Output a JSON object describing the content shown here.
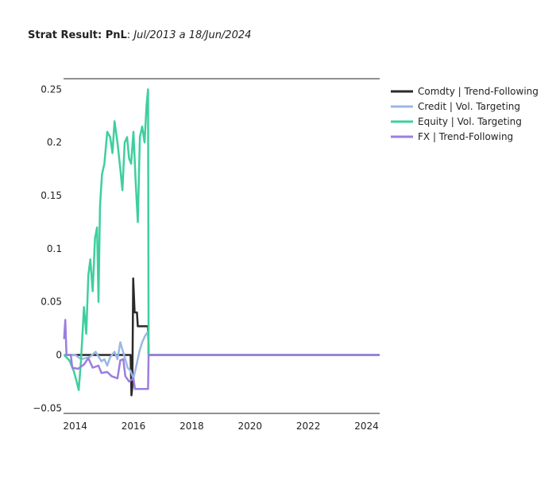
{
  "title": {
    "bold": "Strat Result: PnL",
    "sep": ": ",
    "italic": "Jul/2013 a 18/Jun/2024"
  },
  "chart_data": {
    "type": "line",
    "title": "Strat Result: PnL: Jul/2013 a 18/Jun/2024",
    "xlabel": "",
    "ylabel": "",
    "xlim": [
      2013.6,
      2024.45
    ],
    "ylim": [
      -0.055,
      0.26
    ],
    "x_ticks": [
      2014,
      2016,
      2018,
      2020,
      2022,
      2024
    ],
    "x_tick_labels": [
      "2014",
      "2016",
      "2018",
      "2020",
      "2022",
      "2024"
    ],
    "y_ticks": [
      -0.05,
      0,
      0.05,
      0.1,
      0.15,
      0.2,
      0.25
    ],
    "y_tick_labels": [
      "−0.05",
      "0",
      "0.05",
      "0.1",
      "0.15",
      "0.2",
      "0.25"
    ],
    "grid": false,
    "legend_position": "right",
    "series": [
      {
        "name": "Comdty | Trend-Following",
        "color": "#2a2a2a",
        "points": [
          [
            2013.62,
            0.0
          ],
          [
            2015.45,
            0.0
          ],
          [
            2015.9,
            0.0
          ],
          [
            2015.93,
            -0.038
          ],
          [
            2015.96,
            -0.03
          ],
          [
            2015.99,
            0.072
          ],
          [
            2016.04,
            0.04
          ],
          [
            2016.12,
            0.04
          ],
          [
            2016.15,
            0.027
          ],
          [
            2016.5,
            0.027
          ],
          [
            2016.52,
            0.0
          ],
          [
            2024.45,
            0.0
          ]
        ]
      },
      {
        "name": "Credit | Vol. Targeting",
        "color": "#9ab8e6",
        "points": [
          [
            2013.62,
            0.0
          ],
          [
            2014.0,
            0.0
          ],
          [
            2014.2,
            -0.004
          ],
          [
            2014.5,
            -0.002
          ],
          [
            2014.7,
            0.003
          ],
          [
            2014.9,
            -0.006
          ],
          [
            2015.0,
            -0.004
          ],
          [
            2015.1,
            -0.01
          ],
          [
            2015.2,
            -0.002
          ],
          [
            2015.35,
            0.003
          ],
          [
            2015.45,
            -0.004
          ],
          [
            2015.55,
            0.012
          ],
          [
            2015.62,
            0.005
          ],
          [
            2015.7,
            -0.002
          ],
          [
            2015.8,
            -0.012
          ],
          [
            2015.9,
            -0.015
          ],
          [
            2016.0,
            -0.022
          ],
          [
            2016.1,
            -0.01
          ],
          [
            2016.2,
            0.003
          ],
          [
            2016.3,
            0.012
          ],
          [
            2016.4,
            0.018
          ],
          [
            2016.5,
            0.022
          ],
          [
            2016.52,
            0.0
          ],
          [
            2024.45,
            0.0
          ]
        ]
      },
      {
        "name": "Equity | Vol. Targeting",
        "color": "#3ecf9e",
        "points": [
          [
            2013.62,
            0.0
          ],
          [
            2013.8,
            -0.005
          ],
          [
            2013.95,
            -0.015
          ],
          [
            2014.05,
            -0.025
          ],
          [
            2014.12,
            -0.033
          ],
          [
            2014.2,
            -0.005
          ],
          [
            2014.3,
            0.045
          ],
          [
            2014.38,
            0.02
          ],
          [
            2014.45,
            0.075
          ],
          [
            2014.52,
            0.09
          ],
          [
            2014.6,
            0.06
          ],
          [
            2014.68,
            0.11
          ],
          [
            2014.75,
            0.12
          ],
          [
            2014.8,
            0.05
          ],
          [
            2014.85,
            0.14
          ],
          [
            2014.92,
            0.17
          ],
          [
            2015.0,
            0.18
          ],
          [
            2015.1,
            0.21
          ],
          [
            2015.2,
            0.205
          ],
          [
            2015.28,
            0.19
          ],
          [
            2015.35,
            0.22
          ],
          [
            2015.45,
            0.2
          ],
          [
            2015.55,
            0.175
          ],
          [
            2015.62,
            0.155
          ],
          [
            2015.7,
            0.2
          ],
          [
            2015.78,
            0.205
          ],
          [
            2015.85,
            0.185
          ],
          [
            2015.92,
            0.18
          ],
          [
            2016.0,
            0.21
          ],
          [
            2016.08,
            0.16
          ],
          [
            2016.15,
            0.125
          ],
          [
            2016.22,
            0.205
          ],
          [
            2016.3,
            0.215
          ],
          [
            2016.38,
            0.2
          ],
          [
            2016.45,
            0.235
          ],
          [
            2016.5,
            0.25
          ],
          [
            2016.52,
            0.0
          ],
          [
            2024.45,
            0.0
          ]
        ]
      },
      {
        "name": "FX | Trend-Following",
        "color": "#9b7ee0",
        "points": [
          [
            2013.62,
            0.015
          ],
          [
            2013.66,
            0.033
          ],
          [
            2013.7,
            0.0
          ],
          [
            2013.85,
            0.0
          ],
          [
            2013.9,
            -0.012
          ],
          [
            2014.1,
            -0.013
          ],
          [
            2014.3,
            -0.009
          ],
          [
            2014.45,
            -0.003
          ],
          [
            2014.6,
            -0.012
          ],
          [
            2014.8,
            -0.01
          ],
          [
            2014.9,
            -0.017
          ],
          [
            2015.1,
            -0.016
          ],
          [
            2015.25,
            -0.02
          ],
          [
            2015.45,
            -0.022
          ],
          [
            2015.55,
            -0.005
          ],
          [
            2015.65,
            -0.004
          ],
          [
            2015.72,
            -0.02
          ],
          [
            2015.85,
            -0.025
          ],
          [
            2016.0,
            -0.022
          ],
          [
            2016.05,
            -0.032
          ],
          [
            2016.5,
            -0.032
          ],
          [
            2016.52,
            0.0
          ],
          [
            2024.45,
            0.0
          ]
        ]
      }
    ]
  }
}
